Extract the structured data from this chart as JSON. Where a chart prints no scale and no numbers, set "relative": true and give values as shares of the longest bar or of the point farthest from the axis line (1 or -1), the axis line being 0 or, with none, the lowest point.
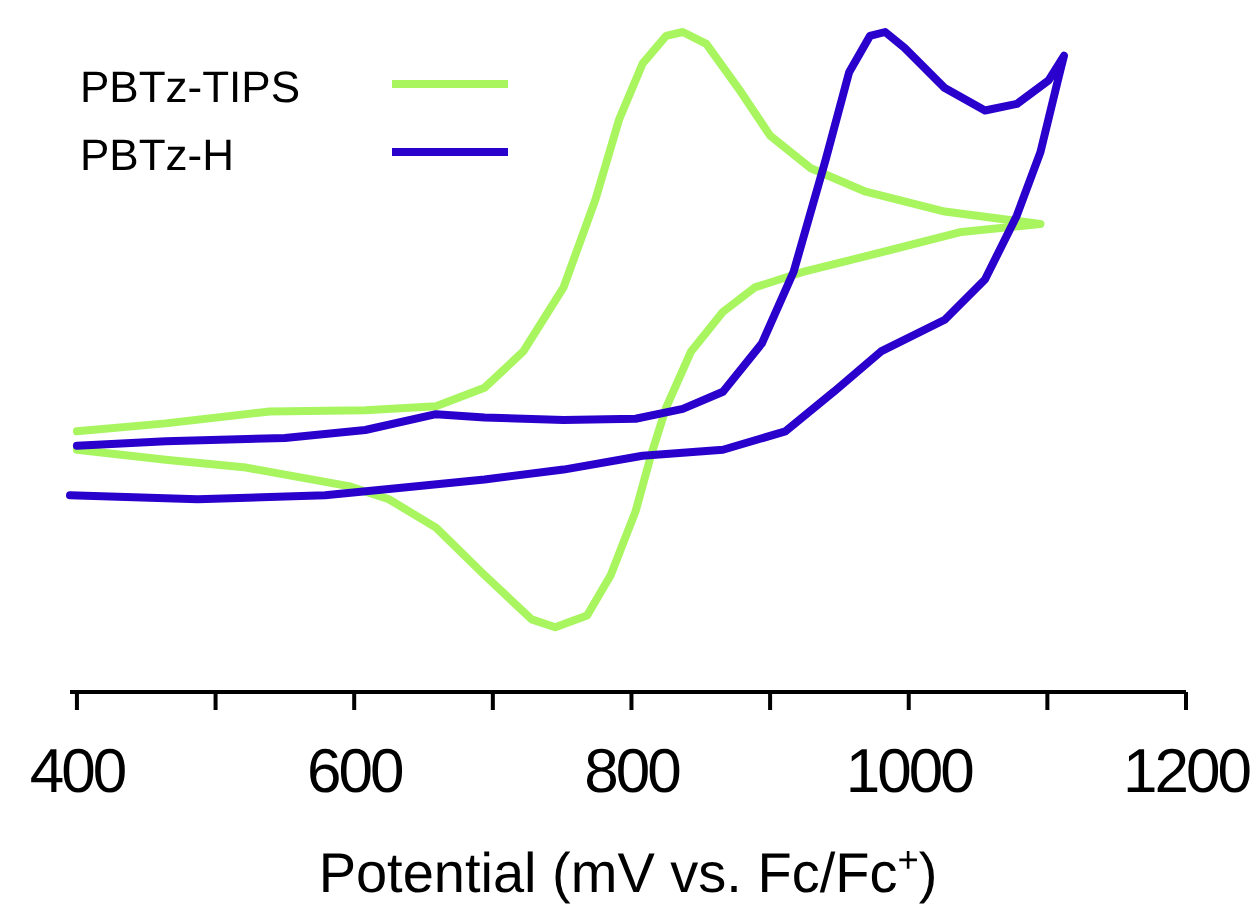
{
  "chart_data": {
    "type": "line",
    "relative": true,
    "xlabel": "Potential (mV vs. Fc/Fc$^{+}$)",
    "xlim": [
      395,
      1200
    ],
    "xticks": [
      400,
      {
        "value": 500,
        "label": null
      },
      600,
      {
        "value": 700,
        "label": null
      },
      800,
      {
        "value": 900,
        "label": null
      },
      1000,
      {
        "value": 1100,
        "label": null
      },
      1200
    ],
    "legend": "top left",
    "grid": false,
    "marker": "none",
    "line_style": "solid",
    "tick_labels": "x",
    "series": [
      {
        "name": "PBTz-TIPS",
        "color": "#a8f560",
        "x": [
          400,
          464,
          539,
          608,
          659,
          694,
          722,
          751,
          774,
          791,
          808,
          825,
          837,
          854,
          877,
          900,
          929,
          969,
          1026,
          1095,
          1038,
          980,
          923,
          889,
          866,
          843,
          825,
          814,
          803,
          785,
          768,
          745,
          728,
          694,
          659,
          625,
          596,
          522,
          464,
          400
        ],
        "values": [
          0.395,
          0.407,
          0.425,
          0.427,
          0.433,
          0.461,
          0.516,
          0.613,
          0.746,
          0.867,
          0.952,
          0.994,
          1,
          0.982,
          0.915,
          0.843,
          0.794,
          0.758,
          0.728,
          0.709,
          0.697,
          0.666,
          0.636,
          0.613,
          0.576,
          0.516,
          0.431,
          0.358,
          0.274,
          0.177,
          0.116,
          0.098,
          0.11,
          0.177,
          0.249,
          0.292,
          0.312,
          0.34,
          0.352,
          0.367
        ]
      },
      {
        "name": "PBTz-H",
        "color": "#2a00cc",
        "x": [
          400,
          464,
          550,
          608,
          659,
          694,
          751,
          803,
          837,
          866,
          894,
          917,
          940,
          957,
          972,
          983,
          997,
          1026,
          1055,
          1078,
          1101,
          1112,
          1109,
          1095,
          1078,
          1055,
          1026,
          980,
          946,
          911,
          866,
          808,
          751,
          694,
          636,
          579,
          487,
          395
        ],
        "values": [
          0.373,
          0.38,
          0.385,
          0.397,
          0.421,
          0.416,
          0.412,
          0.414,
          0.429,
          0.455,
          0.528,
          0.637,
          0.806,
          0.939,
          0.994,
          1,
          0.976,
          0.915,
          0.881,
          0.891,
          0.927,
          0.964,
          0.939,
          0.818,
          0.722,
          0.625,
          0.564,
          0.516,
          0.455,
          0.395,
          0.367,
          0.358,
          0.337,
          0.322,
          0.31,
          0.298,
          0.292,
          0.298
        ]
      }
    ]
  }
}
